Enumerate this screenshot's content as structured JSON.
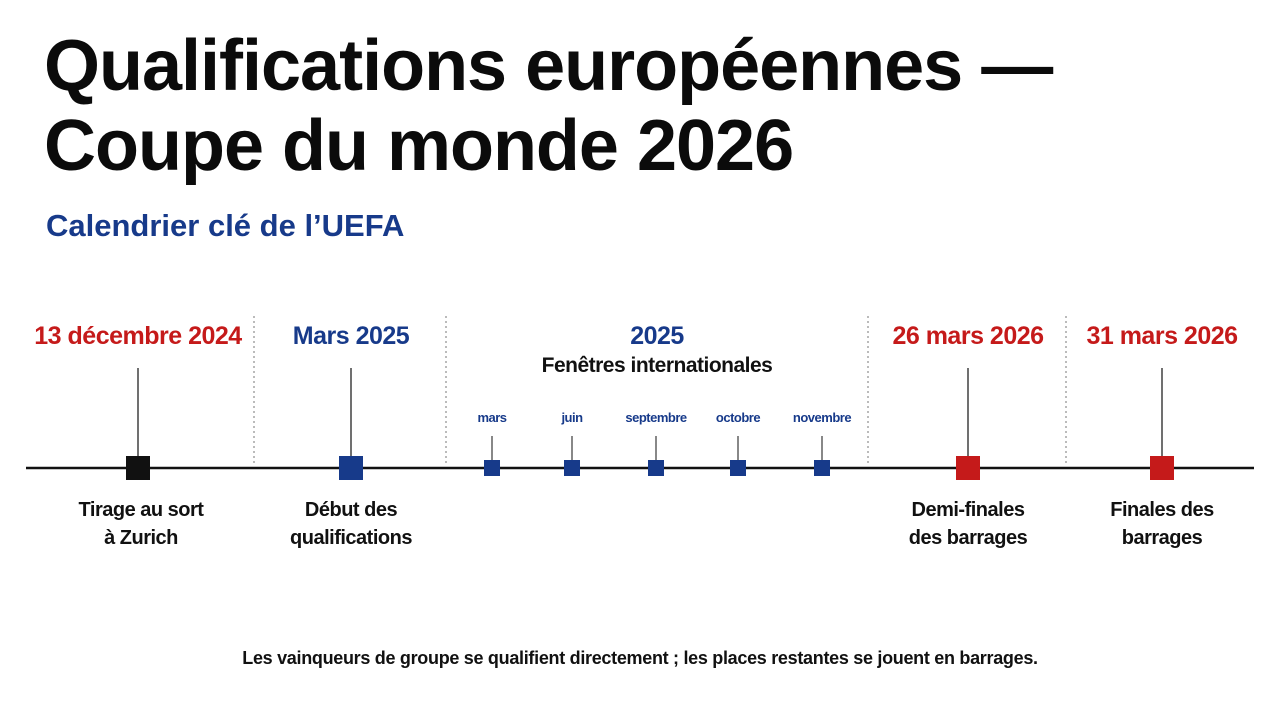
{
  "title": {
    "line1": "Qualifications européennes —",
    "line2": "Coupe du monde 2026"
  },
  "subtitle": "Calendrier clé de l’UEFA",
  "colors": {
    "black": "#111111",
    "blue": "#173a8a",
    "red": "#c51a1a"
  },
  "events": [
    {
      "date": "13 décembre 2024",
      "desc1": "Tirage au sort",
      "desc2": "à Zurich",
      "color": "black",
      "date_color": "red"
    },
    {
      "date": "Mars 2025",
      "desc1": "Début des",
      "desc2": "qualifications",
      "color": "blue",
      "date_color": "blue"
    },
    {
      "date": "26 mars 2026",
      "desc1": "Demi-finales",
      "desc2": "des barrages",
      "color": "red",
      "date_color": "red"
    },
    {
      "date": "31 mars 2026",
      "desc1": "Finales des",
      "desc2": "barrages",
      "color": "red",
      "date_color": "red"
    }
  ],
  "windows": {
    "year": "2025",
    "title": "Fenêtres internationales",
    "months": [
      "mars",
      "juin",
      "septembre",
      "octobre",
      "novembre"
    ]
  },
  "footnote": "Les vainqueurs de groupe se qualifient directement ; les places restantes se jouent en barrages."
}
